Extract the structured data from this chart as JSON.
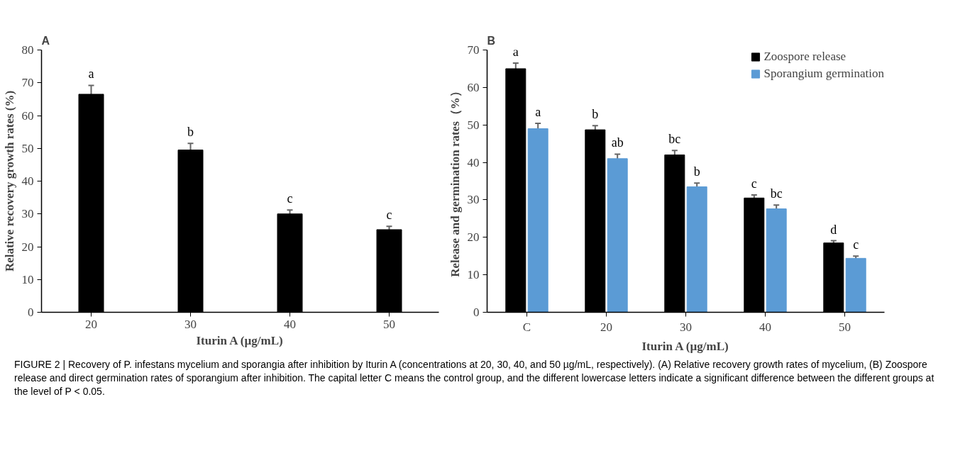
{
  "chart_data": [
    {
      "type": "bar",
      "title": "A",
      "xlabel": "Iturin A (µg/mL)",
      "ylabel": "Relative recovery growth rates (%)",
      "categories": [
        "20",
        "30",
        "40",
        "50"
      ],
      "values": [
        66.5,
        49.5,
        30,
        25.2
      ],
      "errors": [
        2.7,
        2,
        1.2,
        1
      ],
      "color": "#000000",
      "ylim": [
        0,
        80
      ],
      "yticks": [
        0,
        10,
        20,
        30,
        40,
        50,
        60,
        70,
        80
      ],
      "grid": false,
      "legend": false,
      "annotations": [
        {
          "text": "a",
          "x": "20",
          "y": 66.5
        },
        {
          "text": "b",
          "x": "30",
          "y": 49.5
        },
        {
          "text": "c",
          "x": "40",
          "y": 30
        },
        {
          "text": "c",
          "x": "50",
          "y": 25.2
        },
        "FIGURE 2 | Recovery of P. infestans mycelium and sporangia after inhibition by Iturin A (concentrations at 20, 30, 40, and 50 µg/mL, respectively). (A) Relative recovery growth rates of mycelium, (B) Zoospore release and direct germination rates of sporangium after inhibition. The capital letter C means the control group, and the different lowercase letters indicate a significant difference between the different groups at the level of P < 0.05."
      ]
    },
    {
      "type": "bar",
      "title": "B",
      "xlabel": "Iturin A (µg/mL)",
      "ylabel": "Release and germination rates（%）",
      "categories": [
        "C",
        "20",
        "30",
        "40",
        "50"
      ],
      "series": [
        {
          "name": "Zoospore release",
          "color": "#000000",
          "values": [
            65,
            48.7,
            42,
            30.5,
            18.5
          ],
          "errors": [
            1.5,
            1.1,
            1.2,
            0.8,
            0.6
          ]
        },
        {
          "name": "Sporangium germination",
          "color": "#5b9bd5",
          "values": [
            49,
            41,
            33.5,
            27.6,
            14.4
          ],
          "errors": [
            1.4,
            1.2,
            1,
            1,
            0.6
          ]
        }
      ],
      "ylim": [
        0,
        70
      ],
      "yticks": [
        0,
        10,
        20,
        30,
        40,
        50,
        60,
        70
      ],
      "grid": false,
      "legend": "top right",
      "annotations": [
        {
          "text": "a",
          "x": "C",
          "y": 65
        },
        {
          "text": "b",
          "x": "20",
          "y": 48.7
        },
        {
          "text": "bc",
          "x": "30",
          "y": 42
        },
        {
          "text": "c",
          "x": "40",
          "y": 30.5
        },
        {
          "text": "d",
          "x": "50",
          "y": 18.5
        },
        {
          "text": "a",
          "x": "C",
          "y": 49
        },
        {
          "text": "ab",
          "x": "20",
          "y": 41
        },
        {
          "text": "b",
          "x": "30",
          "y": 33.5
        },
        {
          "text": "bc",
          "x": "40",
          "y": 27.6
        },
        {
          "text": "c",
          "x": "50",
          "y": 14.4
        }
      ]
    }
  ]
}
